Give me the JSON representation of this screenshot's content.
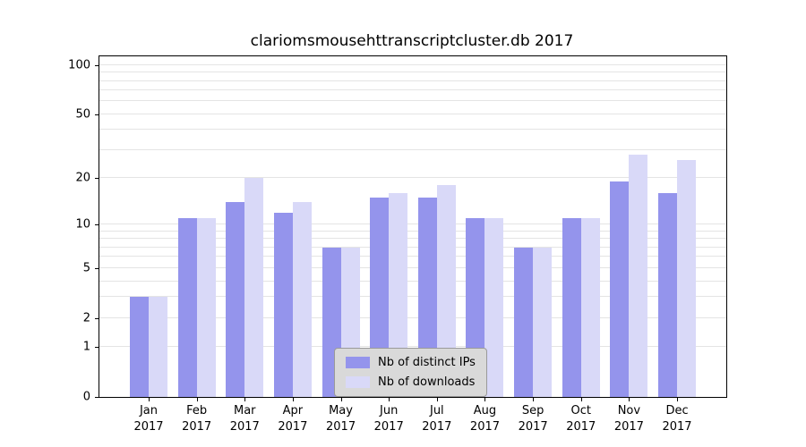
{
  "colors": {
    "ips_bar": "#9494ec",
    "downloads_bar": "#d9d9f8",
    "gridline": "#e4e4e4",
    "axis": "#000000",
    "legend_bg": "#d9d9d9",
    "legend_border": "#9a9a9a",
    "background": "#ffffff"
  },
  "chart_data": {
    "type": "bar",
    "title": "clariomsmousehttranscriptcluster.db 2017",
    "categories": [
      "Jan 2017",
      "Feb 2017",
      "Mar 2017",
      "Apr 2017",
      "May 2017",
      "Jun 2017",
      "Jul 2017",
      "Aug 2017",
      "Sep 2017",
      "Oct 2017",
      "Nov 2017",
      "Dec 2017"
    ],
    "series": [
      {
        "name": "Nb of distinct IPs",
        "values": [
          3,
          11,
          14,
          12,
          7,
          15,
          15,
          11,
          7,
          11,
          19,
          16
        ]
      },
      {
        "name": "Nb of downloads",
        "values": [
          3,
          11,
          20,
          14,
          7,
          16,
          18,
          11,
          7,
          11,
          28,
          26
        ]
      }
    ],
    "xlabel": "",
    "ylabel": "",
    "yscale": "log1p",
    "ylim": [
      0,
      113
    ],
    "yticks": [
      0,
      1,
      2,
      5,
      10,
      20,
      50,
      100
    ],
    "minor_gridlines": [
      3,
      4,
      6,
      7,
      8,
      9,
      30,
      40,
      60,
      70,
      80,
      90
    ],
    "grid": "horizontal",
    "legend_position": "lower center inside"
  }
}
